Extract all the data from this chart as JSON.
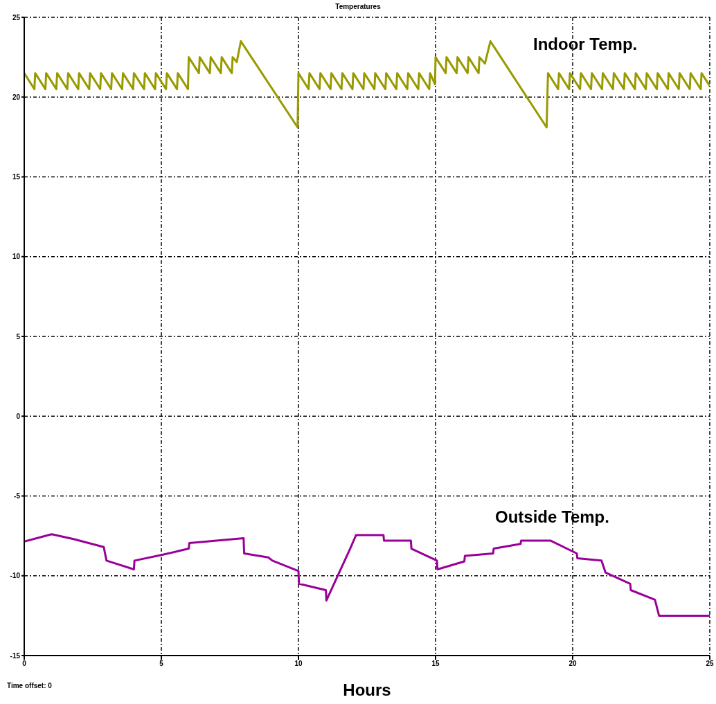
{
  "chart_data": {
    "type": "line",
    "title": "Temperatures",
    "xlabel": "Hours",
    "annotations": [
      "Time offset: 0"
    ],
    "xlim": [
      0,
      25
    ],
    "xticks": [
      0,
      5,
      10,
      15,
      20,
      25
    ],
    "ylim": [
      -15,
      25
    ],
    "yticks": [
      -15,
      -10,
      -5,
      0,
      5,
      10,
      15,
      20,
      25
    ],
    "grid": true,
    "marker": "none",
    "line_style": "solid",
    "series": [
      {
        "name": "Indoor Temp.",
        "color": "#999900",
        "x": [
          0,
          0.37,
          0.4,
          0.77,
          0.8,
          1.17,
          1.2,
          1.57,
          1.6,
          1.97,
          2,
          2.37,
          2.4,
          2.77,
          2.8,
          3.17,
          3.2,
          3.57,
          3.6,
          3.97,
          4,
          4.37,
          4.4,
          4.77,
          4.8,
          5.17,
          5.2,
          5.57,
          5.6,
          5.97,
          6,
          6.37,
          6.4,
          6.77,
          6.8,
          7.17,
          7.2,
          7.57,
          7.6,
          7.75,
          7.9,
          9.97,
          10,
          10.37,
          10.4,
          10.77,
          10.8,
          11.17,
          11.2,
          11.57,
          11.6,
          11.97,
          12,
          12.37,
          12.4,
          12.77,
          12.8,
          13.17,
          13.2,
          13.57,
          13.6,
          13.97,
          14,
          14.37,
          14.4,
          14.77,
          14.8,
          14.98,
          15,
          15.37,
          15.4,
          15.77,
          15.8,
          16.17,
          16.2,
          16.57,
          16.6,
          16.8,
          17,
          19.05,
          19.1,
          19.47,
          19.5,
          19.87,
          19.9,
          20.27,
          20.3,
          20.67,
          20.7,
          21.07,
          21.1,
          21.47,
          21.5,
          21.87,
          21.9,
          22.27,
          22.3,
          22.67,
          22.7,
          23.07,
          23.1,
          23.47,
          23.5,
          23.87,
          23.9,
          24.27,
          24.3,
          24.67,
          24.7,
          25
        ],
        "values": [
          21.5,
          20.5,
          21.5,
          20.5,
          21.5,
          20.5,
          21.5,
          20.5,
          21.5,
          20.5,
          21.5,
          20.5,
          21.5,
          20.5,
          21.5,
          20.5,
          21.5,
          20.5,
          21.5,
          20.5,
          21.5,
          20.5,
          21.5,
          20.5,
          21.5,
          20.5,
          21.5,
          20.5,
          21.5,
          20.5,
          22.5,
          21.5,
          22.5,
          21.5,
          22.5,
          21.5,
          22.5,
          21.5,
          22.5,
          22.2,
          23.5,
          18.1,
          21.5,
          20.5,
          21.5,
          20.5,
          21.5,
          20.5,
          21.5,
          20.5,
          21.5,
          20.5,
          21.5,
          20.5,
          21.5,
          20.5,
          21.5,
          20.5,
          21.5,
          20.5,
          21.5,
          20.5,
          21.5,
          20.5,
          21.5,
          20.5,
          21.5,
          20.8,
          22.5,
          21.5,
          22.5,
          21.5,
          22.5,
          21.5,
          22.5,
          21.5,
          22.5,
          22.1,
          23.5,
          18.1,
          21.5,
          20.5,
          21.5,
          20.5,
          21.5,
          20.5,
          21.5,
          20.5,
          21.5,
          20.5,
          21.5,
          20.5,
          21.5,
          20.5,
          21.5,
          20.5,
          21.5,
          20.5,
          21.5,
          20.5,
          21.5,
          20.5,
          21.5,
          20.5,
          21.5,
          20.5,
          21.5,
          20.5,
          21.5,
          20.7
        ]
      },
      {
        "name": "Outside Temp.",
        "color": "#990099",
        "x": [
          0,
          1,
          1.8,
          2.9,
          3,
          4,
          4.02,
          5,
          6,
          6.02,
          8,
          8.02,
          8.9,
          9.05,
          10,
          10.02,
          11,
          11.02,
          11.9,
          12.1,
          13.1,
          13.12,
          14.1,
          14.12,
          15.05,
          15.07,
          16.05,
          16.07,
          17.1,
          17.12,
          18.1,
          18.12,
          19.2,
          20.15,
          20.17,
          21.05,
          21.2,
          22.1,
          22.12,
          23,
          23.15,
          25
        ],
        "values": [
          -7.85,
          -7.4,
          -7.7,
          -8.2,
          -9.05,
          -9.6,
          -9.05,
          -8.7,
          -8.3,
          -7.95,
          -7.65,
          -8.6,
          -8.85,
          -9.05,
          -9.7,
          -10.5,
          -10.9,
          -11.55,
          -8.25,
          -7.45,
          -7.45,
          -7.8,
          -7.8,
          -8.3,
          -9.05,
          -9.6,
          -9.1,
          -8.75,
          -8.6,
          -8.3,
          -8,
          -7.8,
          -7.8,
          -8.6,
          -8.9,
          -9.05,
          -9.8,
          -10.5,
          -10.9,
          -11.5,
          -12.5,
          -12.5
        ]
      }
    ]
  }
}
